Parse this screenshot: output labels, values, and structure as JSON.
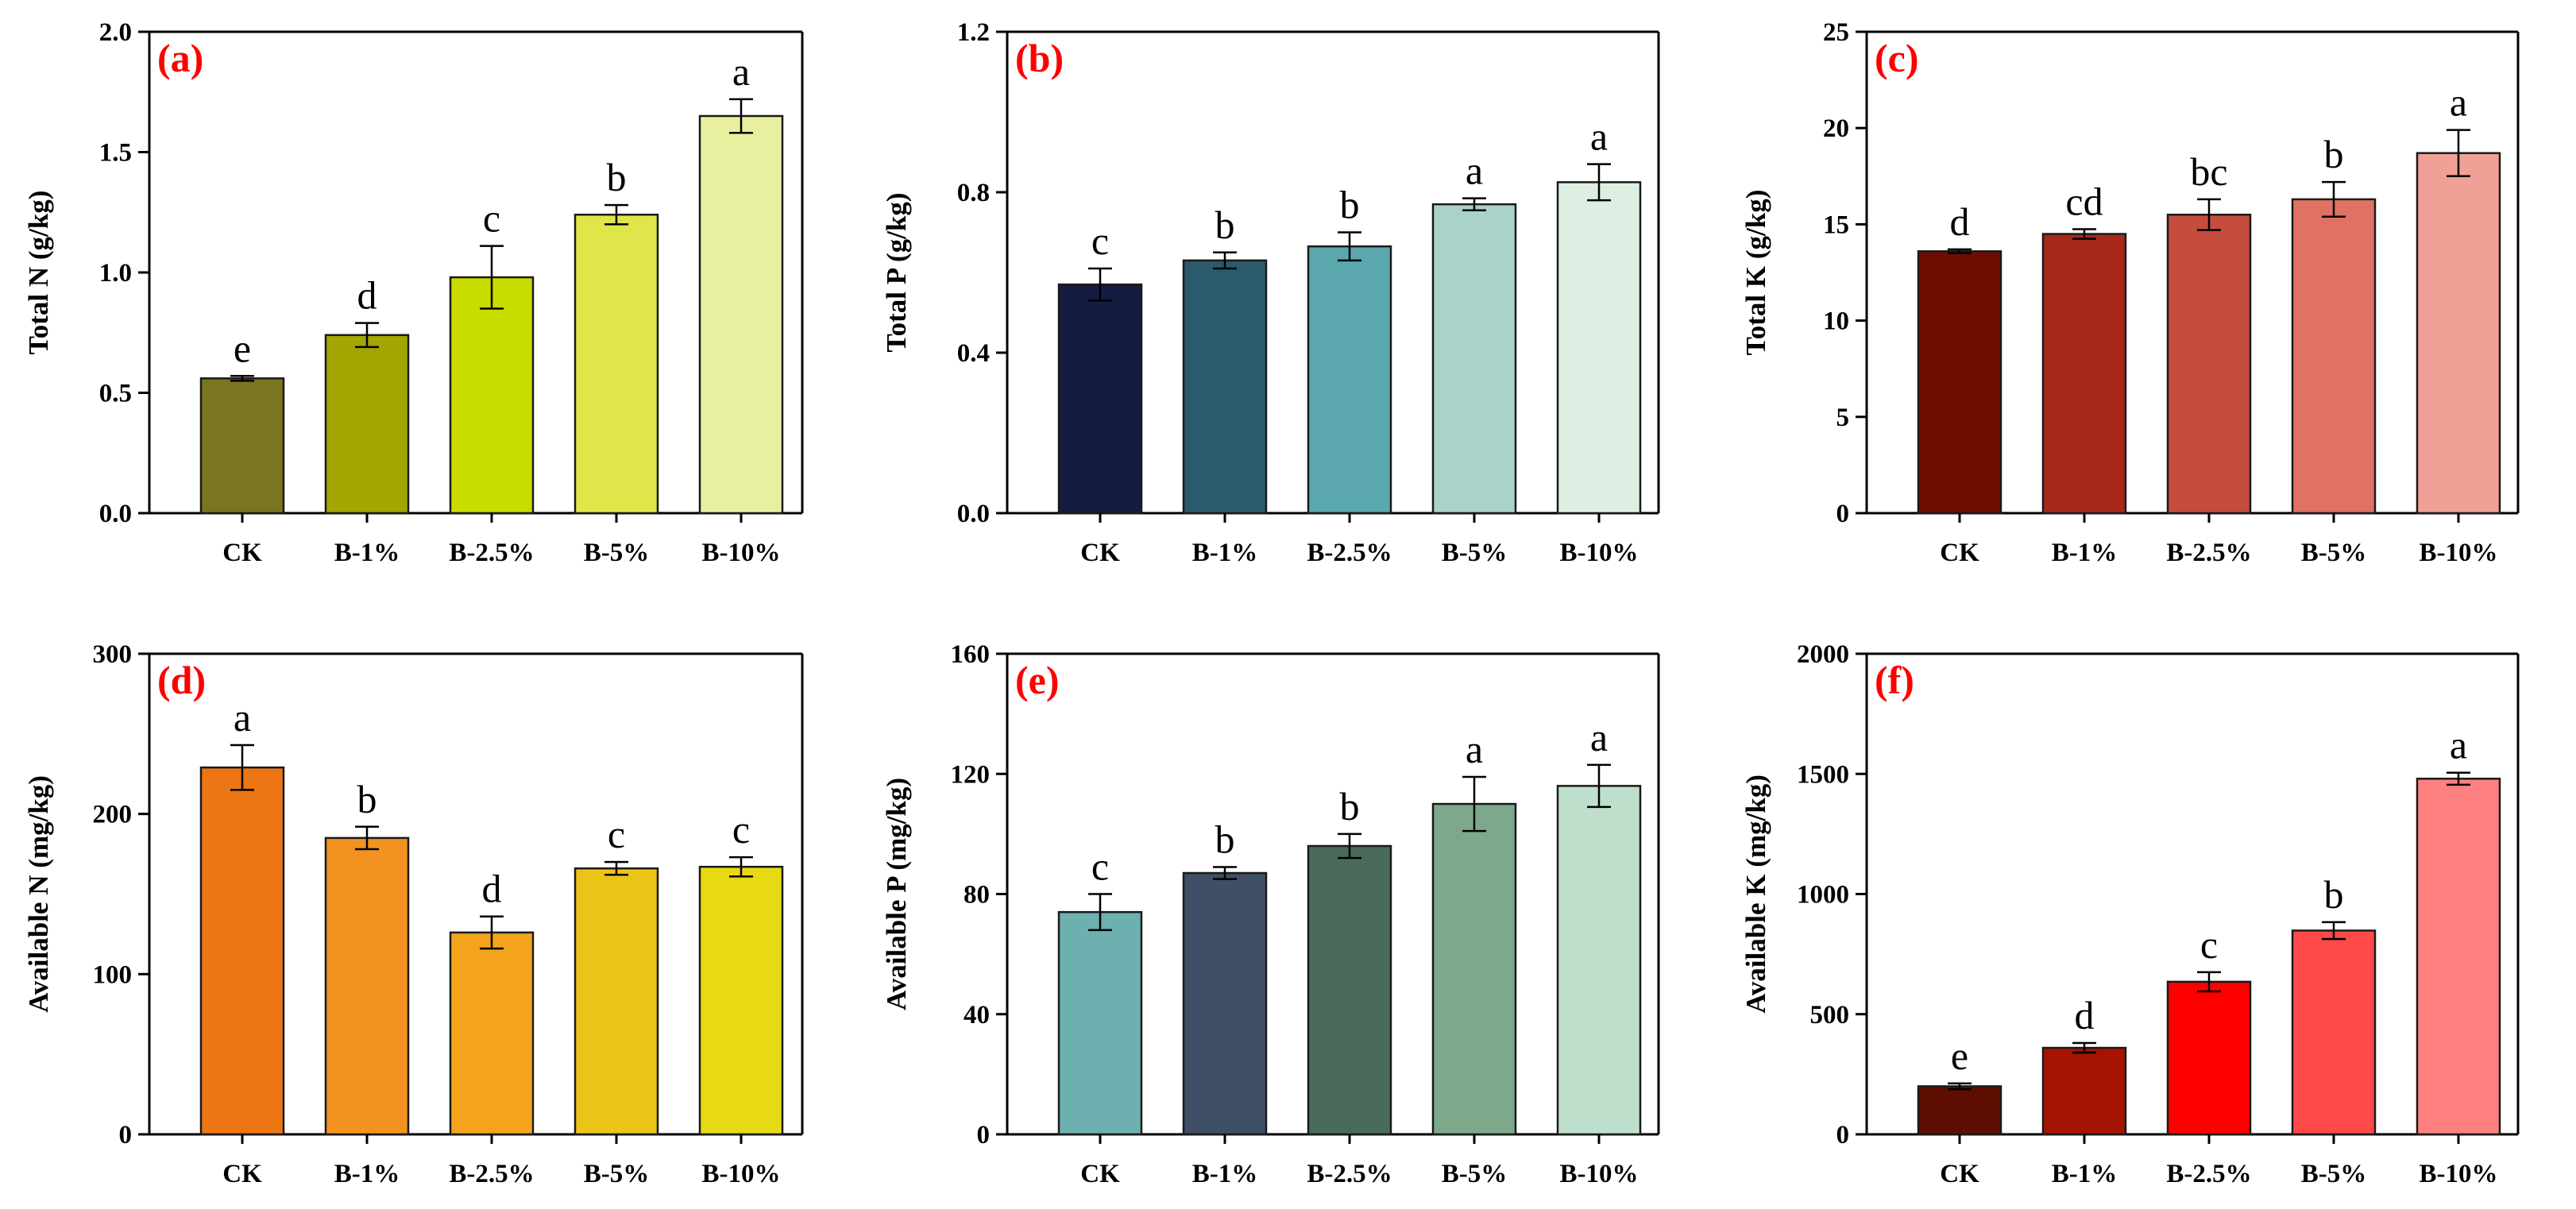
{
  "chart_data": [
    {
      "type": "bar",
      "panel_label": "(a)",
      "ylabel": "Total N (g/kg)",
      "categories": [
        "CK",
        "B-1%",
        "B-2.5%",
        "B-5%",
        "B-10%"
      ],
      "values": [
        0.56,
        0.74,
        0.98,
        1.24,
        1.65
      ],
      "errors": [
        0.01,
        0.05,
        0.13,
        0.04,
        0.07
      ],
      "significance": [
        "e",
        "d",
        "c",
        "b",
        "a"
      ],
      "ylim": [
        0,
        2.0
      ],
      "yticks": [
        "0.0",
        "0.5",
        "1.0",
        "1.5",
        "2.0"
      ],
      "colors": [
        "#7a7520",
        "#a3a500",
        "#c8dc00",
        "#dfe64a",
        "#e8f0a0"
      ]
    },
    {
      "type": "bar",
      "panel_label": "(b)",
      "ylabel": "Total P (g/kg)",
      "categories": [
        "CK",
        "B-1%",
        "B-2.5%",
        "B-5%",
        "B-10%"
      ],
      "values": [
        0.57,
        0.63,
        0.665,
        0.77,
        0.825
      ],
      "errors": [
        0.04,
        0.02,
        0.035,
        0.015,
        0.045
      ],
      "significance": [
        "c",
        "b",
        "b",
        "a",
        "a"
      ],
      "ylim": [
        0,
        1.2
      ],
      "yticks": [
        "0.0",
        "0.4",
        "0.8",
        "1.2"
      ],
      "colors": [
        "#141c42",
        "#2a5a6c",
        "#5aa8ae",
        "#a9d2c8",
        "#ddeee2"
      ]
    },
    {
      "type": "bar",
      "panel_label": "(c)",
      "ylabel": "Total K (g/kg)",
      "categories": [
        "CK",
        "B-1%",
        "B-2.5%",
        "B-5%",
        "B-10%"
      ],
      "values": [
        13.6,
        14.5,
        15.5,
        16.3,
        18.7
      ],
      "errors": [
        0.1,
        0.25,
        0.8,
        0.9,
        1.2
      ],
      "significance": [
        "d",
        "cd",
        "bc",
        "b",
        "a"
      ],
      "ylim": [
        0,
        25
      ],
      "yticks": [
        "0",
        "5",
        "10",
        "15",
        "20",
        "25"
      ],
      "colors": [
        "#6e0e00",
        "#a8291c",
        "#c44d3e",
        "#df7262",
        "#f0a096"
      ]
    },
    {
      "type": "bar",
      "panel_label": "(d)",
      "ylabel": "Available N (mg/kg)",
      "categories": [
        "CK",
        "B-1%",
        "B-2.5%",
        "B-5%",
        "B-10%"
      ],
      "values": [
        229,
        185,
        126,
        166,
        167
      ],
      "errors": [
        14,
        7,
        10,
        4,
        6
      ],
      "significance": [
        "a",
        "b",
        "d",
        "c",
        "c"
      ],
      "ylim": [
        0,
        300
      ],
      "yticks": [
        "0",
        "100",
        "200",
        "300"
      ],
      "colors": [
        "#ec7614",
        "#f39220",
        "#f3a41c",
        "#ecc418",
        "#e8da12"
      ]
    },
    {
      "type": "bar",
      "panel_label": "(e)",
      "ylabel": "Available P (mg/kg)",
      "categories": [
        "CK",
        "B-1%",
        "B-2.5%",
        "B-5%",
        "B-10%"
      ],
      "values": [
        74,
        87,
        96,
        110,
        116
      ],
      "errors": [
        6,
        2,
        4,
        9,
        7
      ],
      "significance": [
        "c",
        "b",
        "b",
        "a",
        "a"
      ],
      "ylim": [
        0,
        160
      ],
      "yticks": [
        "0",
        "40",
        "80",
        "120",
        "160"
      ],
      "colors": [
        "#6db0b0",
        "#3f4f68",
        "#4a6a5c",
        "#7ea88c",
        "#bedfcc"
      ]
    },
    {
      "type": "bar",
      "panel_label": "(f)",
      "ylabel": "Available K (mg/kg)",
      "categories": [
        "CK",
        "B-1%",
        "B-2.5%",
        "B-5%",
        "B-10%"
      ],
      "values": [
        200,
        360,
        635,
        848,
        1480
      ],
      "errors": [
        12,
        20,
        40,
        35,
        25
      ],
      "significance": [
        "e",
        "d",
        "c",
        "b",
        "a"
      ],
      "ylim": [
        0,
        2000
      ],
      "yticks": [
        "0",
        "500",
        "1000",
        "1500",
        "2000"
      ],
      "colors": [
        "#5e0e00",
        "#a51400",
        "#ff0000",
        "#ff4848",
        "#ff8080"
      ]
    }
  ]
}
